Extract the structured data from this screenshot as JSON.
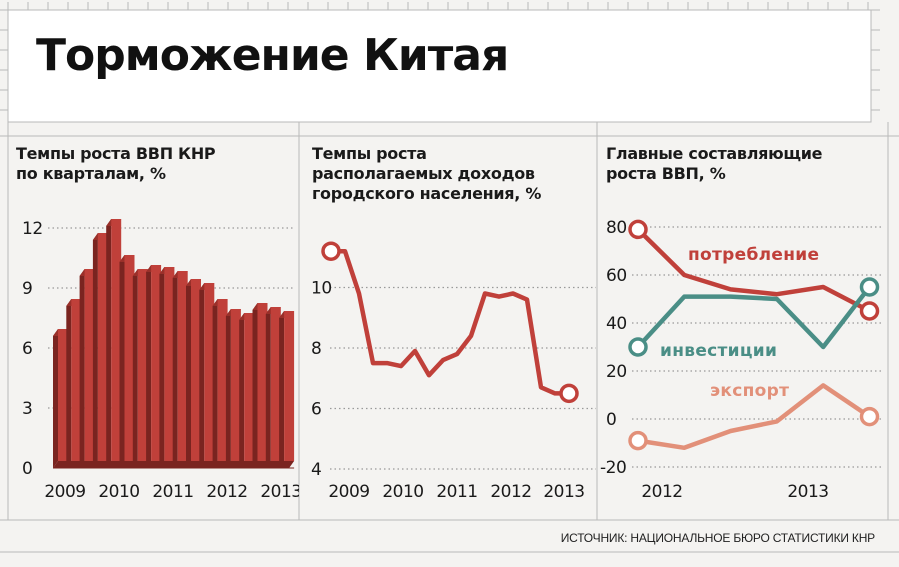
{
  "title": "Торможение Китая",
  "source": "ИСТОЧНИК: НАЦИОНАЛЬНОЕ БЮРО СТАТИСТИКИ КНР",
  "colors": {
    "red": "#c0403a",
    "bar_front": "#c0403a",
    "bar_side": "#7a2420",
    "bar_top": "#9a302a",
    "teal": "#4a8e86",
    "salmon": "#e29079",
    "grid": "#999999",
    "background": "#f4f3f1"
  },
  "chart_data": [
    {
      "type": "bar",
      "title": "Темпы роста ВВП КНР\nпо кварталам, %",
      "categories": [
        "2009 Q1",
        "2009 Q2",
        "2009 Q3",
        "2009 Q4",
        "2010 Q1",
        "2010 Q2",
        "2010 Q3",
        "2010 Q4",
        "2011 Q1",
        "2011 Q2",
        "2011 Q3",
        "2011 Q4",
        "2012 Q1",
        "2012 Q2",
        "2012 Q3",
        "2012 Q4",
        "2013 Q1",
        "2013 Q2"
      ],
      "values": [
        6.6,
        8.1,
        9.6,
        11.4,
        12.1,
        10.3,
        9.6,
        9.8,
        9.7,
        9.5,
        9.1,
        8.9,
        8.1,
        7.6,
        7.4,
        7.9,
        7.7,
        7.5
      ],
      "x_tick_labels": [
        "2009",
        "2010",
        "2011",
        "2012",
        "2013"
      ],
      "y_ticks": [
        0,
        3,
        6,
        9,
        12
      ],
      "ylim": [
        0,
        12.5
      ],
      "grid": true
    },
    {
      "type": "line",
      "title": "Темпы роста\nрасполагаемых доходов\nгородского населения, %",
      "x": [
        2009.0,
        2009.25,
        2009.5,
        2009.75,
        2010.0,
        2010.25,
        2010.5,
        2010.75,
        2011.0,
        2011.25,
        2011.5,
        2011.75,
        2012.0,
        2012.25,
        2012.5,
        2012.75,
        2013.0,
        2013.25
      ],
      "values": [
        11.2,
        11.2,
        9.8,
        7.5,
        7.5,
        7.4,
        7.9,
        7.1,
        7.6,
        7.8,
        8.4,
        9.8,
        9.7,
        9.8,
        9.6,
        6.7,
        6.5,
        6.5
      ],
      "x_tick_labels": [
        "2009",
        "2010",
        "2011",
        "2012",
        "2013"
      ],
      "y_ticks": [
        4,
        6,
        8,
        10
      ],
      "ylim": [
        4,
        11.5
      ],
      "grid": true,
      "endpoint_markers": true
    },
    {
      "type": "line",
      "title": "Главные составляющие\nроста ВВП, %",
      "x_tick_labels": [
        "2012",
        "2013"
      ],
      "y_ticks": [
        -20,
        0,
        20,
        40,
        60,
        80
      ],
      "ylim": [
        -22,
        85
      ],
      "grid": true,
      "series": [
        {
          "name": "потребление",
          "color": "#c0403a",
          "x": [
            0,
            1,
            2,
            3,
            4,
            5
          ],
          "values": [
            79,
            60,
            54,
            52,
            55,
            45
          ]
        },
        {
          "name": "инвестиции",
          "color": "#4a8e86",
          "x": [
            0,
            1,
            2,
            3,
            4,
            5
          ],
          "values": [
            30,
            51,
            51,
            50,
            30,
            55
          ]
        },
        {
          "name": "экспорт",
          "color": "#e29079",
          "x": [
            0,
            1,
            2,
            3,
            4,
            5
          ],
          "values": [
            -9,
            -12,
            -5,
            -1,
            14,
            1
          ]
        }
      ]
    }
  ]
}
